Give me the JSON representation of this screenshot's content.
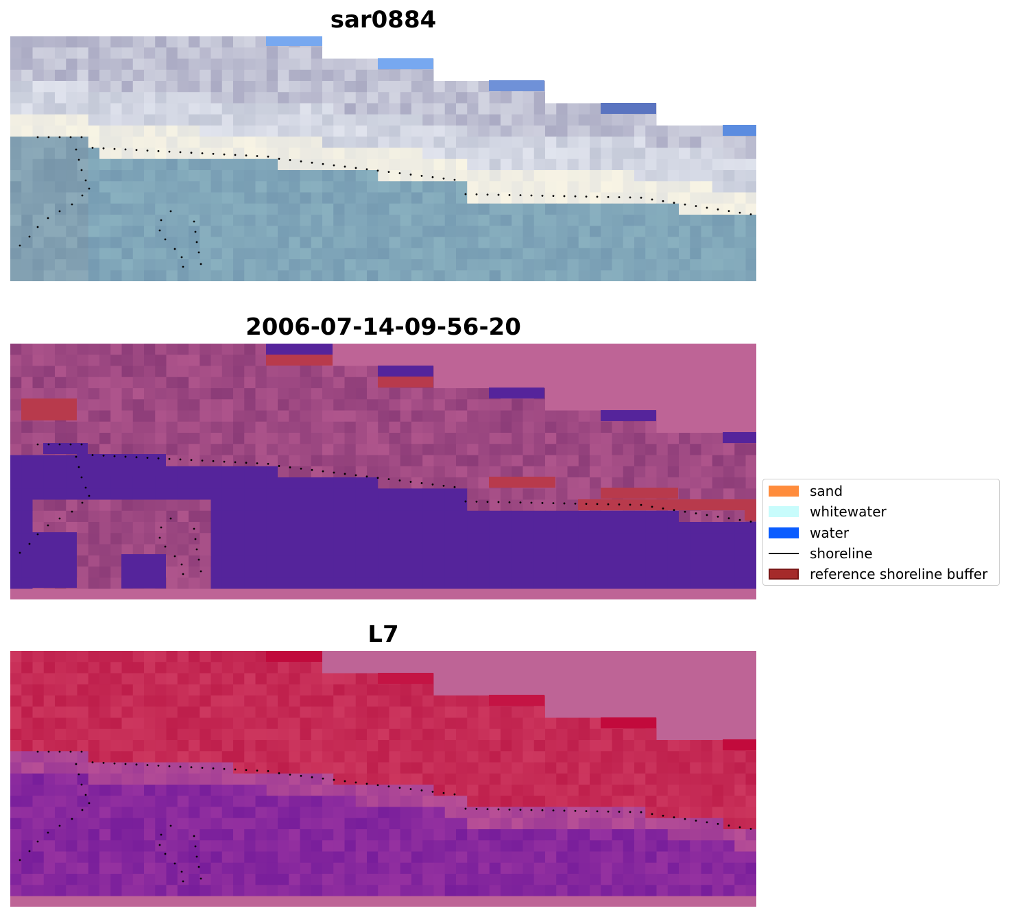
{
  "panels": [
    {
      "title": "sar0884",
      "style": "rgb"
    },
    {
      "title": "2006-07-14-09-56-20",
      "style": "classified"
    },
    {
      "title": "L7",
      "style": "index"
    }
  ],
  "legend": {
    "items": [
      {
        "label": "sand",
        "color": "#ff8c3c",
        "kind": "patch"
      },
      {
        "label": "whitewater",
        "color": "#c8fcfc",
        "kind": "patch"
      },
      {
        "label": "water",
        "color": "#0a5cff",
        "kind": "patch"
      },
      {
        "label": "shoreline",
        "color": "#000000",
        "kind": "line"
      },
      {
        "label": "reference shoreline buffer",
        "color": "#a52a2a",
        "kind": "patch"
      }
    ]
  },
  "colors": {
    "nodata": "#be6496",
    "water_class": "#55249b",
    "buffer_overlay": "#b83a4c"
  }
}
